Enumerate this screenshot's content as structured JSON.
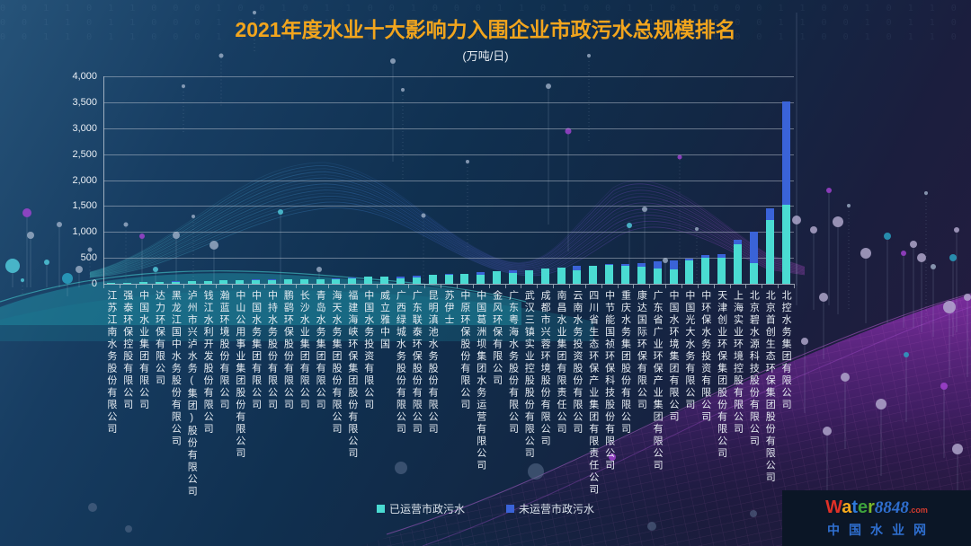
{
  "title": "2021年度水业十大影响力入围企业市政污水总规模排名",
  "subtitle": "(万吨/日)",
  "background_binary": "0 0 1 1 0 1 1 0 0 0 1 0 0 1 0 1 1 0 0 1 0 0 0 1 1 0 1 0 0 1 1 0 1 0 0 0 1 1 0 0 1 0 1 1 0 0 1 0 0 1 1 0 0 1 0 1 0 0 1 1",
  "legend": [
    {
      "label": "已运营市政污水",
      "color": "#4adbd2"
    },
    {
      "label": "未运营市政污水",
      "color": "#3a63d8"
    }
  ],
  "watermark": {
    "word_letters": [
      {
        "char": "W",
        "color": "#e03127"
      },
      {
        "char": "a",
        "color": "#f5a81c"
      },
      {
        "char": "t",
        "color": "#2e79d9"
      },
      {
        "char": "e",
        "color": "#3da03c"
      },
      {
        "char": "r",
        "color": "#7ab82a"
      }
    ],
    "number": "8848",
    "tld": ".com",
    "subtitle": "中国水业网"
  },
  "chart_data": {
    "type": "bar",
    "stacked": true,
    "title": "2021年度水业十大影响力入围企业市政污水总规模排名",
    "unit": "万吨/日",
    "xlabel": "",
    "ylabel": "",
    "ylim": [
      0,
      4000
    ],
    "yticks": [
      0,
      500,
      1000,
      1500,
      2000,
      2500,
      3000,
      3500,
      4000
    ],
    "ytick_labels": [
      "0",
      "500",
      "1,000",
      "1,500",
      "2,000",
      "2,500",
      "3,000",
      "3,500",
      "4,000"
    ],
    "grid": true,
    "legend_position": "bottom",
    "categories": [
      "江苏江南水务股份有限公司",
      "强泰环保控股有限公司",
      "中国水业集团有限公司",
      "达力环保有限公司",
      "黑龙江国中水务股份有限公司",
      "泸州市兴泸水务(集团)股份有限公司",
      "钱江水利开发股份有限公司",
      "瀚蓝环境股份有限公司",
      "中山公用事业集团股份有限公司",
      "中国水务集团有限公司",
      "中持水务股份有限公司",
      "鹏鹞环保股份有限公司",
      "长沙水业集团有限公司",
      "青岛水务集团有限公司",
      "海天水务集团股份有限公司",
      "福建海峡环保集团股份有限公司",
      "中国水务投资有限公司",
      "威立雅中国",
      "广西绿城水务股份有限公司",
      "广东联泰环保股份有限公司",
      "昆明滇池水务股份有限公司",
      "苏伊士",
      "中原环保股份有限公司",
      "中国葛洲坝集团水务运营有限公司",
      "金风环保有限公司",
      "广东粤海水务股份有限公司",
      "武汉三镇实业控股股份有限公司",
      "成都市兴蓉环境股份有限公司",
      "南昌水业集团有限责任公司",
      "云南水务投资股份有限公司",
      "四川省生态环保产业集团有限责任公司",
      "中节能国祯环保科技股份有限公司",
      "重庆水务集团股份有限公司",
      "康达国际环保有限公司",
      "广东省广业环保产业集团有限公司",
      "中国水环境集团有限公司",
      "中国光大水务有限公司",
      "中环保水务投资有限公司",
      "天津创业环保集团股份有限公司",
      "上海实业环境控股有限公司",
      "北京碧水源科技股份有限公司",
      "北京首创生态环保集团股份有限公司",
      "北控水务集团有限公司"
    ],
    "series": [
      {
        "name": "已运营市政污水",
        "color": "#4adbd2",
        "values": [
          20,
          25,
          30,
          40,
          42,
          55,
          60,
          65,
          72,
          70,
          75,
          85,
          90,
          95,
          90,
          100,
          138,
          142,
          105,
          120,
          172,
          168,
          195,
          175,
          240,
          200,
          262,
          300,
          305,
          258,
          340,
          370,
          355,
          322,
          300,
          285,
          450,
          505,
          495,
          770,
          390,
          1235,
          1525
        ]
      },
      {
        "name": "未运营市政污水",
        "color": "#3a63d8",
        "values": [
          0,
          0,
          8,
          0,
          8,
          0,
          0,
          5,
          0,
          10,
          10,
          0,
          0,
          0,
          12,
          18,
          0,
          0,
          40,
          28,
          0,
          22,
          0,
          42,
          0,
          55,
          0,
          0,
          10,
          92,
          15,
          10,
          25,
          70,
          130,
          165,
          40,
          45,
          70,
          75,
          610,
          220,
          1990
        ]
      }
    ]
  }
}
